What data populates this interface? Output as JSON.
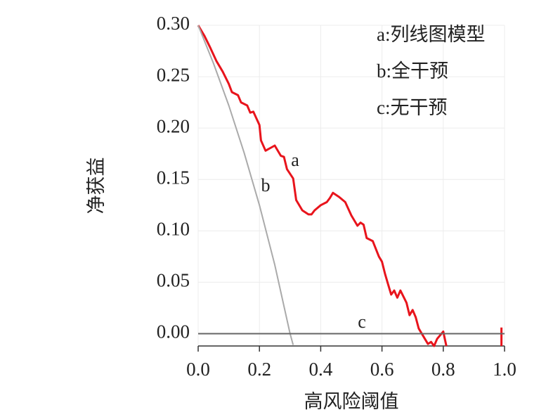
{
  "chart_data": {
    "type": "line",
    "xlabel": "高风险阈值",
    "ylabel": "净获益",
    "xlim": [
      0,
      1
    ],
    "ylim": [
      -0.012,
      0.3
    ],
    "xticks": [
      {
        "value": 0,
        "label": "0.0"
      },
      0.2,
      0.4,
      0.6,
      0.8,
      {
        "value": 1,
        "label": "1.0"
      }
    ],
    "yticks": [
      {
        "value": 0,
        "label": "0.00"
      },
      0.05,
      {
        "value": 0.1,
        "label": "0.10"
      },
      0.15,
      {
        "value": 0.2,
        "label": "0.20"
      },
      0.25,
      {
        "value": 0.3,
        "label": "0.30"
      }
    ],
    "grid": true,
    "legend": "upper right",
    "annotations": [
      "a",
      "b",
      "c"
    ],
    "series": [
      {
        "name": "a:列线图模型",
        "color": "#e8141c",
        "x": [
          0,
          0.02,
          0.04,
          0.06,
          0.08,
          0.1,
          0.11,
          0.13,
          0.14,
          0.16,
          0.17,
          0.18,
          0.2,
          0.205,
          0.22,
          0.25,
          0.27,
          0.28,
          0.29,
          0.31,
          0.32,
          0.34,
          0.36,
          0.37,
          0.38,
          0.4,
          0.42,
          0.43,
          0.44,
          0.46,
          0.48,
          0.5,
          0.52,
          0.53,
          0.54,
          0.55,
          0.57,
          0.59,
          0.6,
          0.61,
          0.62,
          0.63,
          0.64,
          0.65,
          0.66,
          0.68,
          0.69,
          0.7,
          0.71,
          0.72,
          0.74,
          0.75,
          0.76,
          0.77,
          0.78,
          0.8,
          0.81,
          0.9,
          0.99,
          0.99
        ],
        "values": [
          0.3,
          0.29,
          0.278,
          0.265,
          0.255,
          0.243,
          0.235,
          0.232,
          0.225,
          0.222,
          0.215,
          0.216,
          0.203,
          0.188,
          0.178,
          0.183,
          0.173,
          0.172,
          0.16,
          0.151,
          0.13,
          0.12,
          0.116,
          0.116,
          0.12,
          0.125,
          0.128,
          0.132,
          0.137,
          0.133,
          0.128,
          0.115,
          0.105,
          0.108,
          0.106,
          0.093,
          0.09,
          0.075,
          0.07,
          0.058,
          0.048,
          0.038,
          0.042,
          0.035,
          0.042,
          0.03,
          0.018,
          0.023,
          0.016,
          0.005,
          -0.005,
          -0.01,
          -0.008,
          -0.012,
          -0.005,
          0.002,
          -0.012,
          null,
          -0.012,
          0.006
        ]
      },
      {
        "name": "b:全干预",
        "color": "#aaaaaa",
        "x": [
          0,
          0.05,
          0.1,
          0.15,
          0.2,
          0.25,
          0.3,
          0.31
        ],
        "values": [
          0.3,
          0.263,
          0.222,
          0.176,
          0.125,
          0.067,
          0.0,
          -0.011
        ]
      },
      {
        "name": "c:无干预",
        "color": "#666666",
        "x": [
          0,
          1
        ],
        "values": [
          0,
          0
        ]
      }
    ]
  }
}
